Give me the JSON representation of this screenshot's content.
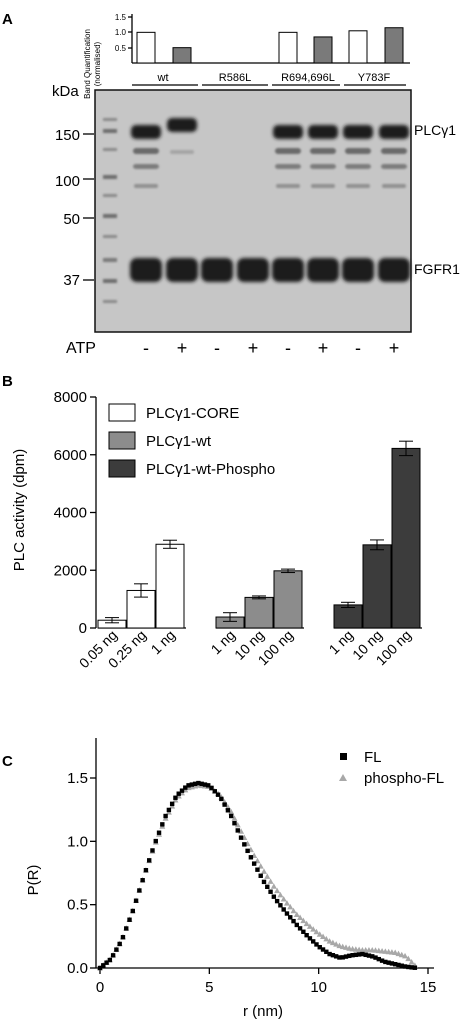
{
  "panels": {
    "a": {
      "letter": "A",
      "band_quant": {
        "ylabel_line1": "Band Quantification",
        "ylabel_line2": "(normalised)",
        "ticks": [
          "1.5",
          "1.0",
          "0.5"
        ]
      },
      "groups": [
        "wt",
        "R586L",
        "R694,696L",
        "Y783F"
      ],
      "kda_label": "kDa",
      "markers": [
        "150",
        "100",
        "50",
        "37"
      ],
      "bands": [
        "PLCγ1",
        "FGFR1"
      ],
      "atp_label": "ATP",
      "atp_signs": [
        "-",
        "+",
        "-",
        "+",
        "-",
        "+",
        "-",
        "+"
      ],
      "colors": {
        "gel_bg": "#c8c8c8",
        "band": "#1e1e1e"
      }
    },
    "b": {
      "letter": "B",
      "ylabel": "PLC activity (dpm)",
      "legend": [
        "PLCγ1-CORE",
        "PLCγ1-wt",
        "PLCγ1-wt-Phospho"
      ],
      "colors": [
        "#ffffff",
        "#8c8c8c",
        "#3c3c3c"
      ]
    },
    "c": {
      "letter": "C",
      "ylabel": "P(R)",
      "xlabel": "r (nm)",
      "legend": [
        "FL",
        "phospho-FL"
      ],
      "colors": [
        "#000000",
        "#a8a8a8"
      ]
    }
  },
  "chart_data": [
    {
      "type": "bar",
      "panel": "A-top",
      "categories": [
        "wt -",
        "wt +",
        "R586L -",
        "R586L +",
        "R694,696L -",
        "R694,696L +",
        "Y783F -",
        "Y783F +"
      ],
      "values": [
        1.0,
        0.5,
        null,
        null,
        1.0,
        0.85,
        1.05,
        1.15
      ],
      "bar_colors": [
        "#ffffff",
        "#7a7a7a",
        "#ffffff",
        "#7a7a7a",
        "#ffffff",
        "#7a7a7a",
        "#ffffff",
        "#7a7a7a"
      ],
      "ylim": [
        0,
        1.5
      ],
      "yticks": [
        0.5,
        1.0,
        1.5
      ],
      "ylabel": "Band Quantification (normalised)"
    },
    {
      "type": "bar",
      "panel": "B",
      "groups": [
        {
          "series": "PLCγ1-CORE",
          "categories": [
            "0.05 ng",
            "0.25 ng",
            "1 ng"
          ],
          "values": [
            270,
            1300,
            2900
          ],
          "errors": [
            90,
            230,
            140
          ]
        },
        {
          "series": "PLCγ1-wt",
          "categories": [
            "1 ng",
            "10 ng",
            "100 ng"
          ],
          "values": [
            380,
            1060,
            1980
          ],
          "errors": [
            150,
            50,
            60
          ]
        },
        {
          "series": "PLCγ1-wt-Phospho",
          "categories": [
            "1 ng",
            "10 ng",
            "100 ng"
          ],
          "values": [
            800,
            2880,
            6220
          ],
          "errors": [
            90,
            170,
            250
          ]
        }
      ],
      "ylim": [
        0,
        8000
      ],
      "yticks": [
        0,
        2000,
        4000,
        6000,
        8000
      ],
      "ylabel": "PLC activity (dpm)",
      "legend_position": "top-left"
    },
    {
      "type": "scatter",
      "panel": "C",
      "xlim": [
        0,
        15
      ],
      "ylim": [
        0,
        1.6
      ],
      "xticks": [
        0,
        5,
        10,
        15
      ],
      "yticks": [
        0.0,
        0.5,
        1.0,
        1.5
      ],
      "xlabel": "r (nm)",
      "ylabel": "P(R)",
      "legend_position": "top-right",
      "series": [
        {
          "name": "FL",
          "marker": "square",
          "x": [
            0,
            0.5,
            1,
            1.5,
            2,
            2.5,
            3,
            3.5,
            4,
            4.5,
            5,
            5.5,
            6,
            6.5,
            7,
            7.5,
            8,
            8.5,
            9,
            9.5,
            10,
            10.5,
            11,
            11.5,
            12,
            12.5,
            13,
            13.5,
            14,
            14.5
          ],
          "y": [
            0.0,
            0.07,
            0.22,
            0.45,
            0.72,
            0.98,
            1.2,
            1.36,
            1.44,
            1.46,
            1.44,
            1.35,
            1.2,
            1.01,
            0.84,
            0.68,
            0.55,
            0.44,
            0.34,
            0.25,
            0.17,
            0.11,
            0.08,
            0.1,
            0.11,
            0.09,
            0.05,
            0.03,
            0.01,
            0.0
          ]
        },
        {
          "name": "phospho-FL",
          "marker": "triangle",
          "x": [
            0,
            0.5,
            1,
            1.5,
            2,
            2.5,
            3,
            3.5,
            4,
            4.5,
            5,
            5.5,
            6,
            6.5,
            7,
            7.5,
            8,
            8.5,
            9,
            9.5,
            10,
            10.5,
            11,
            11.5,
            12,
            12.5,
            13,
            13.5,
            14,
            14.5
          ],
          "y": [
            0.0,
            0.07,
            0.22,
            0.45,
            0.72,
            0.97,
            1.18,
            1.34,
            1.42,
            1.44,
            1.43,
            1.36,
            1.23,
            1.06,
            0.9,
            0.76,
            0.63,
            0.52,
            0.42,
            0.34,
            0.27,
            0.21,
            0.17,
            0.15,
            0.14,
            0.14,
            0.13,
            0.12,
            0.09,
            0.0
          ]
        }
      ]
    }
  ]
}
